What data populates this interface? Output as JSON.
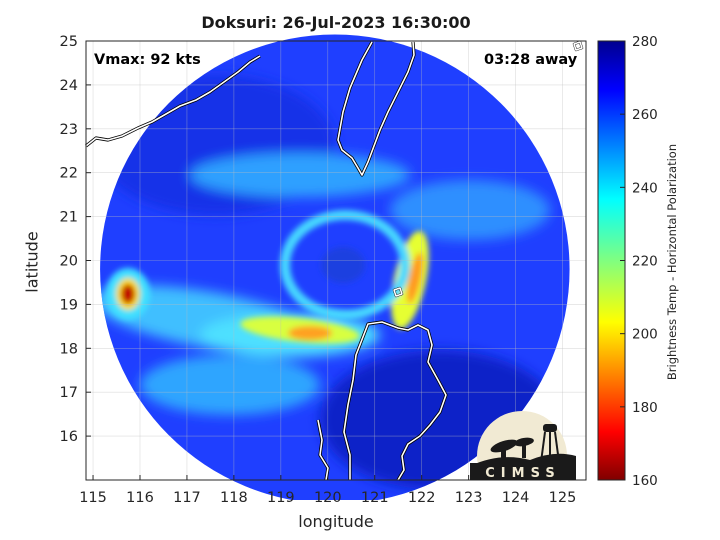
{
  "title": "Doksuri: 26-Jul-2023 16:30:00",
  "vmax_label": "Vmax: 92 kts",
  "time_away_label": "03:28 away",
  "xlabel": "longitude",
  "ylabel": "latitude",
  "colorbar": {
    "label": "Brightness Temp - Horizontal Polarization",
    "min": 160,
    "max": 280,
    "ticks": [
      160,
      180,
      200,
      220,
      240,
      260,
      280
    ],
    "colormap": "jet"
  },
  "axes": {
    "xlim": [
      114.85,
      125.5
    ],
    "ylim": [
      15,
      25
    ],
    "xticks": [
      115,
      116,
      117,
      118,
      119,
      120,
      121,
      122,
      123,
      124,
      125
    ],
    "yticks": [
      16,
      17,
      18,
      19,
      20,
      21,
      22,
      23,
      24,
      25
    ],
    "grid": true
  },
  "storm": {
    "center_lon": 120.4,
    "center_lat": 19.9,
    "swath_center_lon": 120.15,
    "swath_center_lat": 19.8,
    "swath_radius_deg": 5.0
  },
  "logo": {
    "text": "CIMSS"
  },
  "colors": {
    "coast": "#ffffff",
    "background": "#ffffff"
  }
}
